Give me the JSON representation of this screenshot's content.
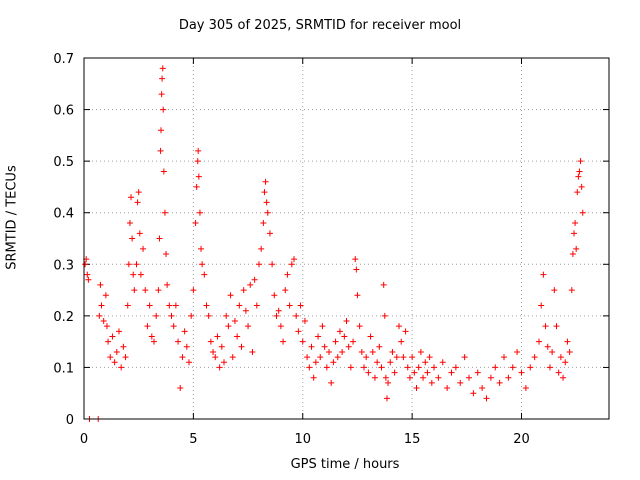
{
  "chart_data": {
    "type": "scatter",
    "title": "Day 305 of 2025, SRMTID for receiver mool",
    "xlabel": "GPS time / hours",
    "ylabel": "SRMTID / TECUs",
    "xlim": [
      0,
      24
    ],
    "ylim": [
      0,
      0.7
    ],
    "xticks": [
      0,
      5,
      10,
      15,
      20
    ],
    "yticks": [
      0,
      0.1,
      0.2,
      0.3,
      0.4,
      0.5,
      0.6,
      0.7
    ],
    "xtick_labels": [
      "0",
      "5",
      "10",
      "15",
      "20"
    ],
    "ytick_labels": [
      "0",
      "0.1",
      "0.2",
      "0.3",
      "0.4",
      "0.5",
      "0.6",
      "0.7"
    ],
    "grid": true,
    "marker": "+",
    "color": "#ff0000",
    "series": [
      {
        "name": "SRMTID",
        "points": [
          [
            0.05,
            0.3
          ],
          [
            0.1,
            0.31
          ],
          [
            0.15,
            0.28
          ],
          [
            0.2,
            0.27
          ],
          [
            0.25,
            0.0
          ],
          [
            0.65,
            0.0
          ],
          [
            0.7,
            0.2
          ],
          [
            0.75,
            0.26
          ],
          [
            0.8,
            0.22
          ],
          [
            0.9,
            0.19
          ],
          [
            1.0,
            0.24
          ],
          [
            1.05,
            0.18
          ],
          [
            1.1,
            0.15
          ],
          [
            1.2,
            0.12
          ],
          [
            1.3,
            0.16
          ],
          [
            1.4,
            0.11
          ],
          [
            1.5,
            0.13
          ],
          [
            1.6,
            0.17
          ],
          [
            1.7,
            0.1
          ],
          [
            1.8,
            0.14
          ],
          [
            1.9,
            0.12
          ],
          [
            2.0,
            0.22
          ],
          [
            2.05,
            0.3
          ],
          [
            2.1,
            0.38
          ],
          [
            2.15,
            0.43
          ],
          [
            2.2,
            0.35
          ],
          [
            2.25,
            0.28
          ],
          [
            2.3,
            0.25
          ],
          [
            2.4,
            0.3
          ],
          [
            2.45,
            0.42
          ],
          [
            2.5,
            0.44
          ],
          [
            2.55,
            0.36
          ],
          [
            2.6,
            0.28
          ],
          [
            2.7,
            0.33
          ],
          [
            2.8,
            0.25
          ],
          [
            2.9,
            0.18
          ],
          [
            3.0,
            0.22
          ],
          [
            3.1,
            0.16
          ],
          [
            3.2,
            0.15
          ],
          [
            3.3,
            0.2
          ],
          [
            3.4,
            0.25
          ],
          [
            3.45,
            0.35
          ],
          [
            3.5,
            0.52
          ],
          [
            3.52,
            0.56
          ],
          [
            3.55,
            0.63
          ],
          [
            3.57,
            0.66
          ],
          [
            3.6,
            0.68
          ],
          [
            3.62,
            0.6
          ],
          [
            3.65,
            0.48
          ],
          [
            3.7,
            0.4
          ],
          [
            3.75,
            0.32
          ],
          [
            3.8,
            0.26
          ],
          [
            3.9,
            0.22
          ],
          [
            4.0,
            0.2
          ],
          [
            4.1,
            0.18
          ],
          [
            4.2,
            0.22
          ],
          [
            4.3,
            0.15
          ],
          [
            4.4,
            0.06
          ],
          [
            4.5,
            0.12
          ],
          [
            4.6,
            0.17
          ],
          [
            4.7,
            0.14
          ],
          [
            4.8,
            0.11
          ],
          [
            4.9,
            0.2
          ],
          [
            5.0,
            0.25
          ],
          [
            5.1,
            0.38
          ],
          [
            5.15,
            0.45
          ],
          [
            5.2,
            0.5
          ],
          [
            5.22,
            0.52
          ],
          [
            5.25,
            0.47
          ],
          [
            5.3,
            0.4
          ],
          [
            5.35,
            0.33
          ],
          [
            5.4,
            0.3
          ],
          [
            5.5,
            0.28
          ],
          [
            5.6,
            0.22
          ],
          [
            5.7,
            0.2
          ],
          [
            5.8,
            0.15
          ],
          [
            5.9,
            0.13
          ],
          [
            6.0,
            0.12
          ],
          [
            6.1,
            0.16
          ],
          [
            6.2,
            0.1
          ],
          [
            6.3,
            0.14
          ],
          [
            6.4,
            0.11
          ],
          [
            6.5,
            0.2
          ],
          [
            6.6,
            0.18
          ],
          [
            6.7,
            0.24
          ],
          [
            6.8,
            0.12
          ],
          [
            6.9,
            0.19
          ],
          [
            7.0,
            0.16
          ],
          [
            7.1,
            0.22
          ],
          [
            7.2,
            0.14
          ],
          [
            7.3,
            0.25
          ],
          [
            7.4,
            0.21
          ],
          [
            7.5,
            0.18
          ],
          [
            7.6,
            0.26
          ],
          [
            7.7,
            0.13
          ],
          [
            7.8,
            0.27
          ],
          [
            7.9,
            0.22
          ],
          [
            8.0,
            0.3
          ],
          [
            8.1,
            0.33
          ],
          [
            8.2,
            0.38
          ],
          [
            8.25,
            0.44
          ],
          [
            8.3,
            0.46
          ],
          [
            8.35,
            0.42
          ],
          [
            8.4,
            0.4
          ],
          [
            8.5,
            0.36
          ],
          [
            8.6,
            0.3
          ],
          [
            8.7,
            0.24
          ],
          [
            8.8,
            0.2
          ],
          [
            8.9,
            0.21
          ],
          [
            9.0,
            0.18
          ],
          [
            9.1,
            0.15
          ],
          [
            9.2,
            0.25
          ],
          [
            9.3,
            0.28
          ],
          [
            9.4,
            0.22
          ],
          [
            9.5,
            0.3
          ],
          [
            9.6,
            0.31
          ],
          [
            9.7,
            0.2
          ],
          [
            9.8,
            0.17
          ],
          [
            9.9,
            0.22
          ],
          [
            10.0,
            0.15
          ],
          [
            10.1,
            0.19
          ],
          [
            10.2,
            0.12
          ],
          [
            10.3,
            0.1
          ],
          [
            10.4,
            0.14
          ],
          [
            10.5,
            0.08
          ],
          [
            10.6,
            0.11
          ],
          [
            10.7,
            0.16
          ],
          [
            10.8,
            0.12
          ],
          [
            10.9,
            0.18
          ],
          [
            11.0,
            0.14
          ],
          [
            11.1,
            0.1
          ],
          [
            11.2,
            0.13
          ],
          [
            11.3,
            0.07
          ],
          [
            11.4,
            0.11
          ],
          [
            11.5,
            0.15
          ],
          [
            11.6,
            0.12
          ],
          [
            11.7,
            0.17
          ],
          [
            11.8,
            0.13
          ],
          [
            11.9,
            0.16
          ],
          [
            12.0,
            0.19
          ],
          [
            12.1,
            0.14
          ],
          [
            12.2,
            0.1
          ],
          [
            12.3,
            0.15
          ],
          [
            12.4,
            0.31
          ],
          [
            12.45,
            0.29
          ],
          [
            12.5,
            0.24
          ],
          [
            12.6,
            0.18
          ],
          [
            12.7,
            0.13
          ],
          [
            12.8,
            0.1
          ],
          [
            12.9,
            0.12
          ],
          [
            13.0,
            0.09
          ],
          [
            13.1,
            0.16
          ],
          [
            13.2,
            0.13
          ],
          [
            13.3,
            0.08
          ],
          [
            13.4,
            0.11
          ],
          [
            13.5,
            0.14
          ],
          [
            13.6,
            0.1
          ],
          [
            13.7,
            0.26
          ],
          [
            13.75,
            0.2
          ],
          [
            13.8,
            0.08
          ],
          [
            13.85,
            0.04
          ],
          [
            13.9,
            0.07
          ],
          [
            14.0,
            0.11
          ],
          [
            14.1,
            0.13
          ],
          [
            14.2,
            0.09
          ],
          [
            14.3,
            0.12
          ],
          [
            14.4,
            0.18
          ],
          [
            14.5,
            0.15
          ],
          [
            14.6,
            0.12
          ],
          [
            14.7,
            0.17
          ],
          [
            14.8,
            0.1
          ],
          [
            14.9,
            0.08
          ],
          [
            15.0,
            0.12
          ],
          [
            15.1,
            0.09
          ],
          [
            15.2,
            0.06
          ],
          [
            15.3,
            0.1
          ],
          [
            15.4,
            0.13
          ],
          [
            15.5,
            0.08
          ],
          [
            15.6,
            0.11
          ],
          [
            15.7,
            0.09
          ],
          [
            15.8,
            0.12
          ],
          [
            15.9,
            0.07
          ],
          [
            16.0,
            0.1
          ],
          [
            16.2,
            0.08
          ],
          [
            16.4,
            0.11
          ],
          [
            16.6,
            0.06
          ],
          [
            16.8,
            0.09
          ],
          [
            17.0,
            0.1
          ],
          [
            17.2,
            0.07
          ],
          [
            17.4,
            0.12
          ],
          [
            17.6,
            0.08
          ],
          [
            17.8,
            0.05
          ],
          [
            18.0,
            0.09
          ],
          [
            18.2,
            0.06
          ],
          [
            18.4,
            0.04
          ],
          [
            18.6,
            0.08
          ],
          [
            18.8,
            0.1
          ],
          [
            19.0,
            0.07
          ],
          [
            19.2,
            0.12
          ],
          [
            19.4,
            0.08
          ],
          [
            19.6,
            0.1
          ],
          [
            19.8,
            0.13
          ],
          [
            20.0,
            0.09
          ],
          [
            20.2,
            0.06
          ],
          [
            20.4,
            0.1
          ],
          [
            20.6,
            0.12
          ],
          [
            20.8,
            0.15
          ],
          [
            20.9,
            0.22
          ],
          [
            21.0,
            0.28
          ],
          [
            21.1,
            0.18
          ],
          [
            21.2,
            0.14
          ],
          [
            21.3,
            0.1
          ],
          [
            21.4,
            0.13
          ],
          [
            21.5,
            0.25
          ],
          [
            21.6,
            0.18
          ],
          [
            21.7,
            0.09
          ],
          [
            21.8,
            0.12
          ],
          [
            21.9,
            0.08
          ],
          [
            22.0,
            0.11
          ],
          [
            22.1,
            0.15
          ],
          [
            22.2,
            0.13
          ],
          [
            22.3,
            0.25
          ],
          [
            22.35,
            0.32
          ],
          [
            22.4,
            0.36
          ],
          [
            22.45,
            0.38
          ],
          [
            22.5,
            0.33
          ],
          [
            22.55,
            0.44
          ],
          [
            22.6,
            0.47
          ],
          [
            22.65,
            0.48
          ],
          [
            22.7,
            0.5
          ],
          [
            22.75,
            0.45
          ],
          [
            22.8,
            0.4
          ]
        ]
      }
    ]
  }
}
